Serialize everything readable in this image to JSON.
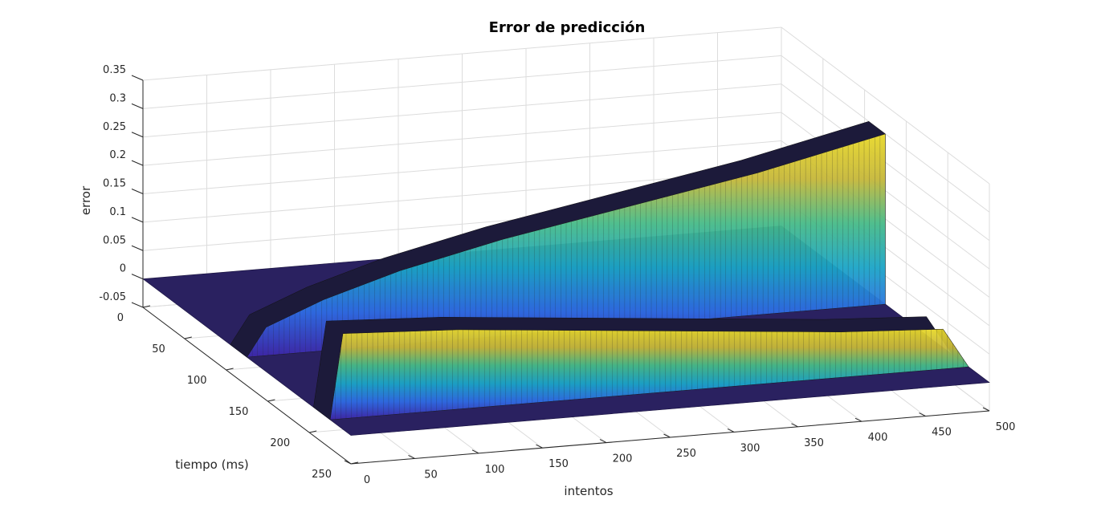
{
  "chart_data": {
    "type": "surface",
    "title": "Error de predicción",
    "xlabel": "intentos",
    "ylabel": "tiempo (ms)",
    "zlabel": "error",
    "xlim": [
      0,
      500
    ],
    "ylim": [
      0,
      250
    ],
    "zlim": [
      -0.05,
      0.35
    ],
    "x_ticks": [
      "0",
      "50",
      "100",
      "150",
      "200",
      "250",
      "300",
      "350",
      "400",
      "450",
      "500"
    ],
    "y_ticks": [
      "0",
      "50",
      "100",
      "150",
      "200",
      "250"
    ],
    "z_ticks": [
      "-0.05",
      "0",
      "0.05",
      "0.1",
      "0.15",
      "0.2",
      "0.25",
      "0.3",
      "0.35"
    ],
    "grid": true,
    "colormap": "parula",
    "ridges": [
      {
        "name": "",
        "y_from": 105,
        "y_to": 125,
        "z_at_x": [
          [
            0,
            0
          ],
          [
            15,
            0.05
          ],
          [
            60,
            0.09
          ],
          [
            120,
            0.13
          ],
          [
            200,
            0.17
          ],
          [
            300,
            0.21
          ],
          [
            400,
            0.25
          ],
          [
            500,
            0.3
          ]
        ]
      },
      {
        "name": "",
        "y_from": 205,
        "y_to": 225,
        "z_at_x": [
          [
            0,
            0
          ],
          [
            10,
            0.15
          ],
          [
            100,
            0.14
          ],
          [
            200,
            0.12
          ],
          [
            300,
            0.1
          ],
          [
            400,
            0.08
          ],
          [
            480,
            0.07
          ],
          [
            500,
            0
          ]
        ]
      }
    ]
  }
}
